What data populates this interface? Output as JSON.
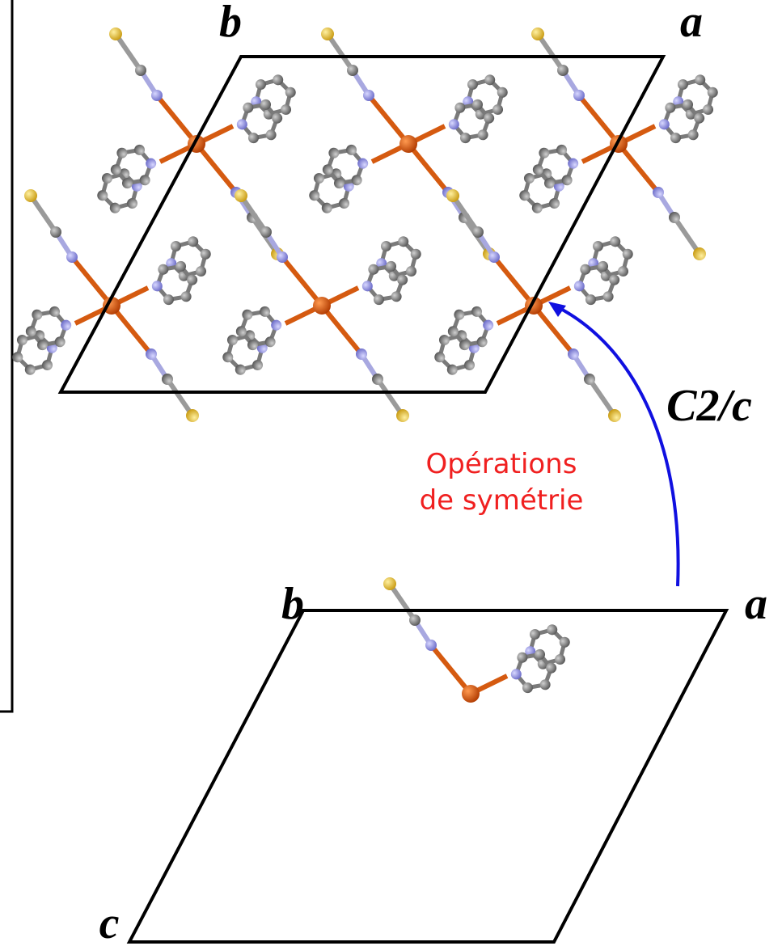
{
  "top_cell": {
    "b": "b",
    "a": "a"
  },
  "space_group": "C2/c",
  "annotation": [
    "Opérations",
    "de symétrie"
  ],
  "bottom_cell": {
    "b": "b",
    "a": "a",
    "c": "c"
  }
}
